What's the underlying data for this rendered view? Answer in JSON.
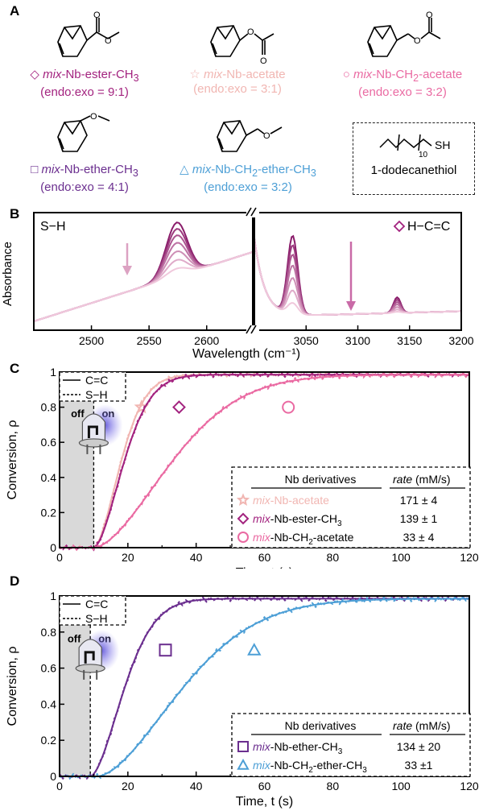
{
  "colors": {
    "ester": "#a3237f",
    "acetate": "#f1b6b2",
    "ch2acetate": "#ea6aa2",
    "ether": "#6b2f8f",
    "ch2ether": "#4d9fd6",
    "shade": "#d9d9d9"
  },
  "panelA": {
    "letter": "A",
    "molecules": [
      {
        "marker": "diamond",
        "prefix": "mix",
        "name": "-Nb-ester-CH",
        "sub": "3",
        "ratio": "(endo:exo = 9:1)"
      },
      {
        "marker": "star",
        "prefix": "mix",
        "name": "-Nb-acetate",
        "sub": "",
        "ratio": "(endo:exo = 3:1)"
      },
      {
        "marker": "circle",
        "prefix": "mix",
        "name": "-Nb-CH",
        "sub": "2",
        "name2": "-acetate",
        "ratio": "(endo:exo = 3:2)"
      },
      {
        "marker": "square",
        "prefix": "mix",
        "name": "-Nb-ether-CH",
        "sub": "3",
        "ratio": "(endo:exo = 4:1)"
      },
      {
        "marker": "triangle",
        "prefix": "mix",
        "name": "-Nb-CH",
        "sub": "2",
        "name2": "-ether-CH",
        "sub2": "3",
        "ratio": "(endo:exo = 3:2)"
      }
    ],
    "thiol": {
      "label": "1-dodecanethiol",
      "subscript": "10",
      "group": "SH"
    }
  },
  "chart_data": [
    {
      "panel": "B",
      "type": "line",
      "xlabel": "Wavelength (cm⁻¹)",
      "ylabel": "Absorbance",
      "x_ticks_left": [
        2500,
        2550,
        2600
      ],
      "x_ticks_right": [
        3050,
        3100,
        3150,
        3200
      ],
      "xlim_left": [
        2450,
        2640
      ],
      "xlim_right": [
        3000,
        3200
      ],
      "left_label": "S−H",
      "right_label": "H−C=C",
      "series": [
        {
          "peak_SH": 1.0,
          "peak_CC": 1.0,
          "peak_CC2": 1.0
        },
        {
          "peak_SH": 0.88,
          "peak_CC": 0.88,
          "peak_CC2": 0.85
        },
        {
          "peak_SH": 0.76,
          "peak_CC": 0.76,
          "peak_CC2": 0.7
        },
        {
          "peak_SH": 0.62,
          "peak_CC": 0.62,
          "peak_CC2": 0.55
        },
        {
          "peak_SH": 0.46,
          "peak_CC": 0.46,
          "peak_CC2": 0.38
        },
        {
          "peak_SH": 0.3,
          "peak_CC": 0.3,
          "peak_CC2": 0.22
        },
        {
          "peak_SH": 0.14,
          "peak_CC": 0.14,
          "peak_CC2": 0.08
        }
      ]
    },
    {
      "panel": "C",
      "type": "line",
      "xlabel": "Time, t (s)",
      "ylabel": "Conversion, ρ",
      "xlim": [
        0,
        120
      ],
      "ylim": [
        0,
        1
      ],
      "x_ticks": [
        0,
        20,
        40,
        60,
        80,
        100,
        120
      ],
      "y_ticks": [
        0,
        0.2,
        0.4,
        0.6,
        0.8,
        1
      ],
      "legend_lines": [
        "C=C",
        "S−H"
      ],
      "light": [
        "off",
        "on"
      ],
      "light_on_time": 10,
      "table_header": [
        "Nb derivatives",
        "rate",
        "(mM/s)"
      ],
      "series": [
        {
          "marker": "star",
          "prefix": "mix",
          "name": "-Nb-acetate",
          "sub": "",
          "rate": "171 ± 4",
          "color_key": "acetate",
          "t_on": 10,
          "k": 0.1,
          "marker_x": 24,
          "marker_y": 0.8
        },
        {
          "marker": "diamond",
          "prefix": "mix",
          "name": "-Nb-ester-CH",
          "sub": "3",
          "rate": "139 ± 1",
          "color_key": "ester",
          "t_on": 10,
          "k": 0.09,
          "marker_x": 35,
          "marker_y": 0.8
        },
        {
          "marker": "circle",
          "prefix": "mix",
          "name": "-Nb-CH",
          "sub": "2",
          "name2": "-acetate",
          "rate": "33 ± 4",
          "color_key": "ch2acetate",
          "t_on": 10,
          "k": 0.035,
          "marker_x": 67,
          "marker_y": 0.8
        }
      ]
    },
    {
      "panel": "D",
      "type": "line",
      "xlabel": "Time, t (s)",
      "ylabel": "Conversion, ρ",
      "xlim": [
        0,
        120
      ],
      "ylim": [
        0,
        1
      ],
      "x_ticks": [
        0,
        20,
        40,
        60,
        80,
        100,
        120
      ],
      "y_ticks": [
        0,
        0.2,
        0.4,
        0.6,
        0.8,
        1
      ],
      "legend_lines": [
        "C=C",
        "S−H"
      ],
      "light": [
        "off",
        "on"
      ],
      "light_on_time": 9,
      "table_header": [
        "Nb derivatives",
        "rate",
        "(mM/s)"
      ],
      "series": [
        {
          "marker": "square",
          "prefix": "mix",
          "name": "-Nb-ether-CH",
          "sub": "3",
          "rate": "134 ± 20",
          "color_key": "ether",
          "t_on": 9,
          "k": 0.08,
          "marker_x": 31,
          "marker_y": 0.7
        },
        {
          "marker": "triangle",
          "prefix": "mix",
          "name": "-Nb-CH",
          "sub": "2",
          "name2": "-ether-CH",
          "sub2": "3",
          "rate": "33 ±1",
          "color_key": "ch2ether",
          "t_on": 11,
          "k": 0.032,
          "marker_x": 57,
          "marker_y": 0.7
        }
      ]
    }
  ]
}
